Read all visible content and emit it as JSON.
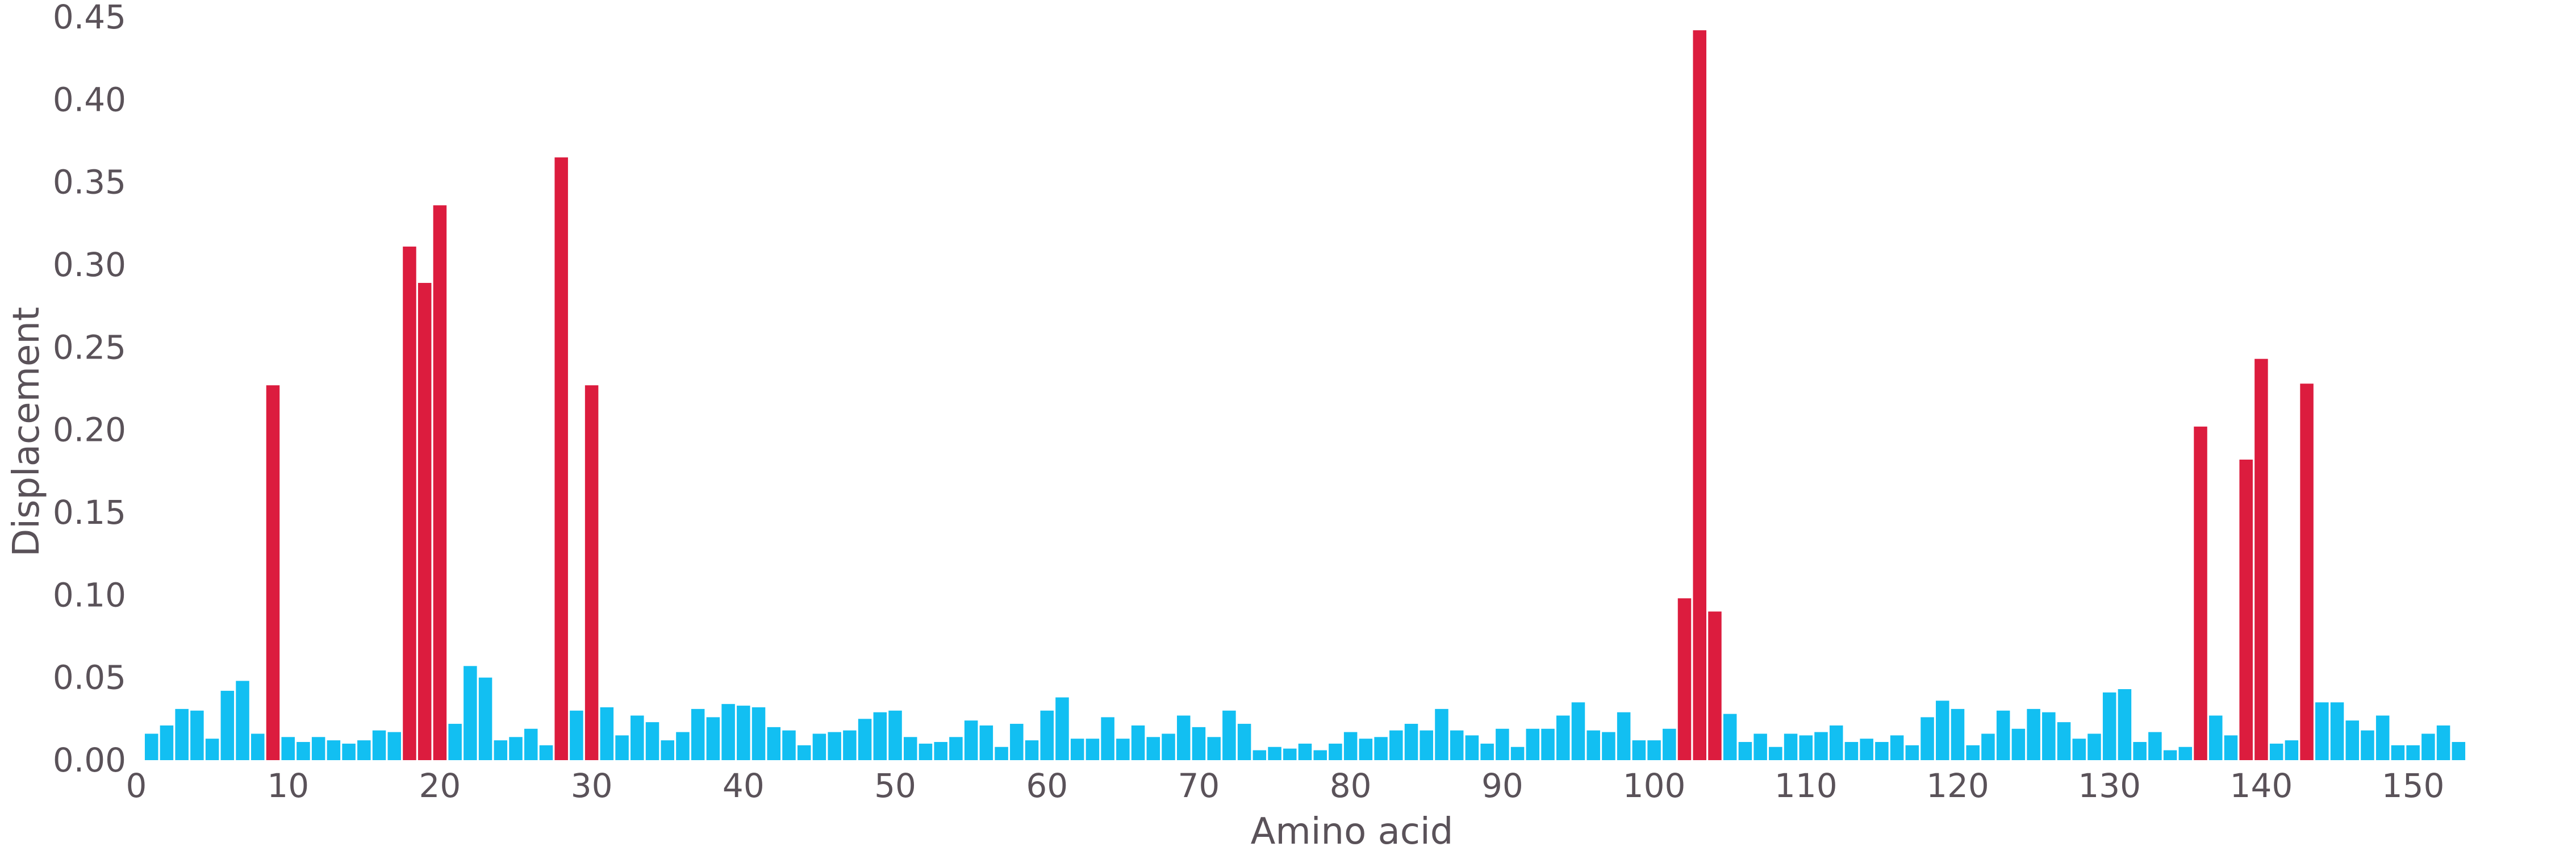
{
  "chart_data": {
    "type": "bar",
    "xlabel": "Amino acid",
    "ylabel": "Displacement",
    "xlim": [
      0,
      154
    ],
    "ylim": [
      0,
      0.45
    ],
    "xticks": [
      "0",
      "10",
      "20",
      "30",
      "40",
      "50",
      "60",
      "70",
      "80",
      "90",
      "100",
      "110",
      "120",
      "130",
      "140",
      "150"
    ],
    "yticks": [
      "0.00",
      "0.05",
      "0.10",
      "0.15",
      "0.20",
      "0.25",
      "0.30",
      "0.35",
      "0.40",
      "0.45"
    ],
    "grid": false,
    "colors": {
      "normal": "#12bff2",
      "highlight": "#dc1c3e"
    },
    "highlight_threshold": 0.06,
    "x": [
      1,
      2,
      3,
      4,
      5,
      6,
      7,
      8,
      9,
      10,
      11,
      12,
      13,
      14,
      15,
      16,
      17,
      18,
      19,
      20,
      21,
      22,
      23,
      24,
      25,
      26,
      27,
      28,
      29,
      30,
      31,
      32,
      33,
      34,
      35,
      36,
      37,
      38,
      39,
      40,
      41,
      42,
      43,
      44,
      45,
      46,
      47,
      48,
      49,
      50,
      51,
      52,
      53,
      54,
      55,
      56,
      57,
      58,
      59,
      60,
      61,
      62,
      63,
      64,
      65,
      66,
      67,
      68,
      69,
      70,
      71,
      72,
      73,
      74,
      75,
      76,
      77,
      78,
      79,
      80,
      81,
      82,
      83,
      84,
      85,
      86,
      87,
      88,
      89,
      90,
      91,
      92,
      93,
      94,
      95,
      96,
      97,
      98,
      99,
      100,
      101,
      102,
      103,
      104,
      105,
      106,
      107,
      108,
      109,
      110,
      111,
      112,
      113,
      114,
      115,
      116,
      117,
      118,
      119,
      120,
      121,
      122,
      123,
      124,
      125,
      126,
      127,
      128,
      129,
      130,
      131,
      132,
      133,
      134,
      135,
      136,
      137,
      138,
      139,
      140,
      141,
      142,
      143,
      144,
      145,
      146,
      147,
      148,
      149,
      150,
      151,
      152,
      153
    ],
    "values": [
      0.016,
      0.021,
      0.031,
      0.03,
      0.013,
      0.042,
      0.048,
      0.016,
      0.227,
      0.014,
      0.011,
      0.014,
      0.012,
      0.01,
      0.012,
      0.018,
      0.017,
      0.311,
      0.289,
      0.336,
      0.022,
      0.057,
      0.05,
      0.012,
      0.014,
      0.019,
      0.009,
      0.365,
      0.03,
      0.227,
      0.032,
      0.015,
      0.027,
      0.023,
      0.012,
      0.017,
      0.031,
      0.026,
      0.034,
      0.033,
      0.032,
      0.02,
      0.018,
      0.009,
      0.016,
      0.017,
      0.018,
      0.025,
      0.029,
      0.03,
      0.014,
      0.01,
      0.011,
      0.014,
      0.024,
      0.021,
      0.008,
      0.022,
      0.012,
      0.03,
      0.038,
      0.013,
      0.013,
      0.026,
      0.013,
      0.021,
      0.014,
      0.016,
      0.027,
      0.02,
      0.014,
      0.03,
      0.022,
      0.006,
      0.008,
      0.007,
      0.01,
      0.006,
      0.01,
      0.017,
      0.013,
      0.014,
      0.018,
      0.022,
      0.018,
      0.031,
      0.018,
      0.015,
      0.01,
      0.019,
      0.008,
      0.019,
      0.019,
      0.027,
      0.035,
      0.018,
      0.017,
      0.029,
      0.012,
      0.012,
      0.019,
      0.098,
      0.442,
      0.09,
      0.028,
      0.011,
      0.016,
      0.008,
      0.016,
      0.015,
      0.017,
      0.021,
      0.011,
      0.013,
      0.011,
      0.015,
      0.009,
      0.026,
      0.036,
      0.031,
      0.009,
      0.016,
      0.03,
      0.019,
      0.031,
      0.029,
      0.023,
      0.013,
      0.016,
      0.041,
      0.043,
      0.011,
      0.017,
      0.006,
      0.008,
      0.202,
      0.027,
      0.015,
      0.182,
      0.243,
      0.01,
      0.012,
      0.228,
      0.035,
      0.035,
      0.024,
      0.018,
      0.027,
      0.009,
      0.009,
      0.016,
      0.021,
      0.011
    ]
  }
}
